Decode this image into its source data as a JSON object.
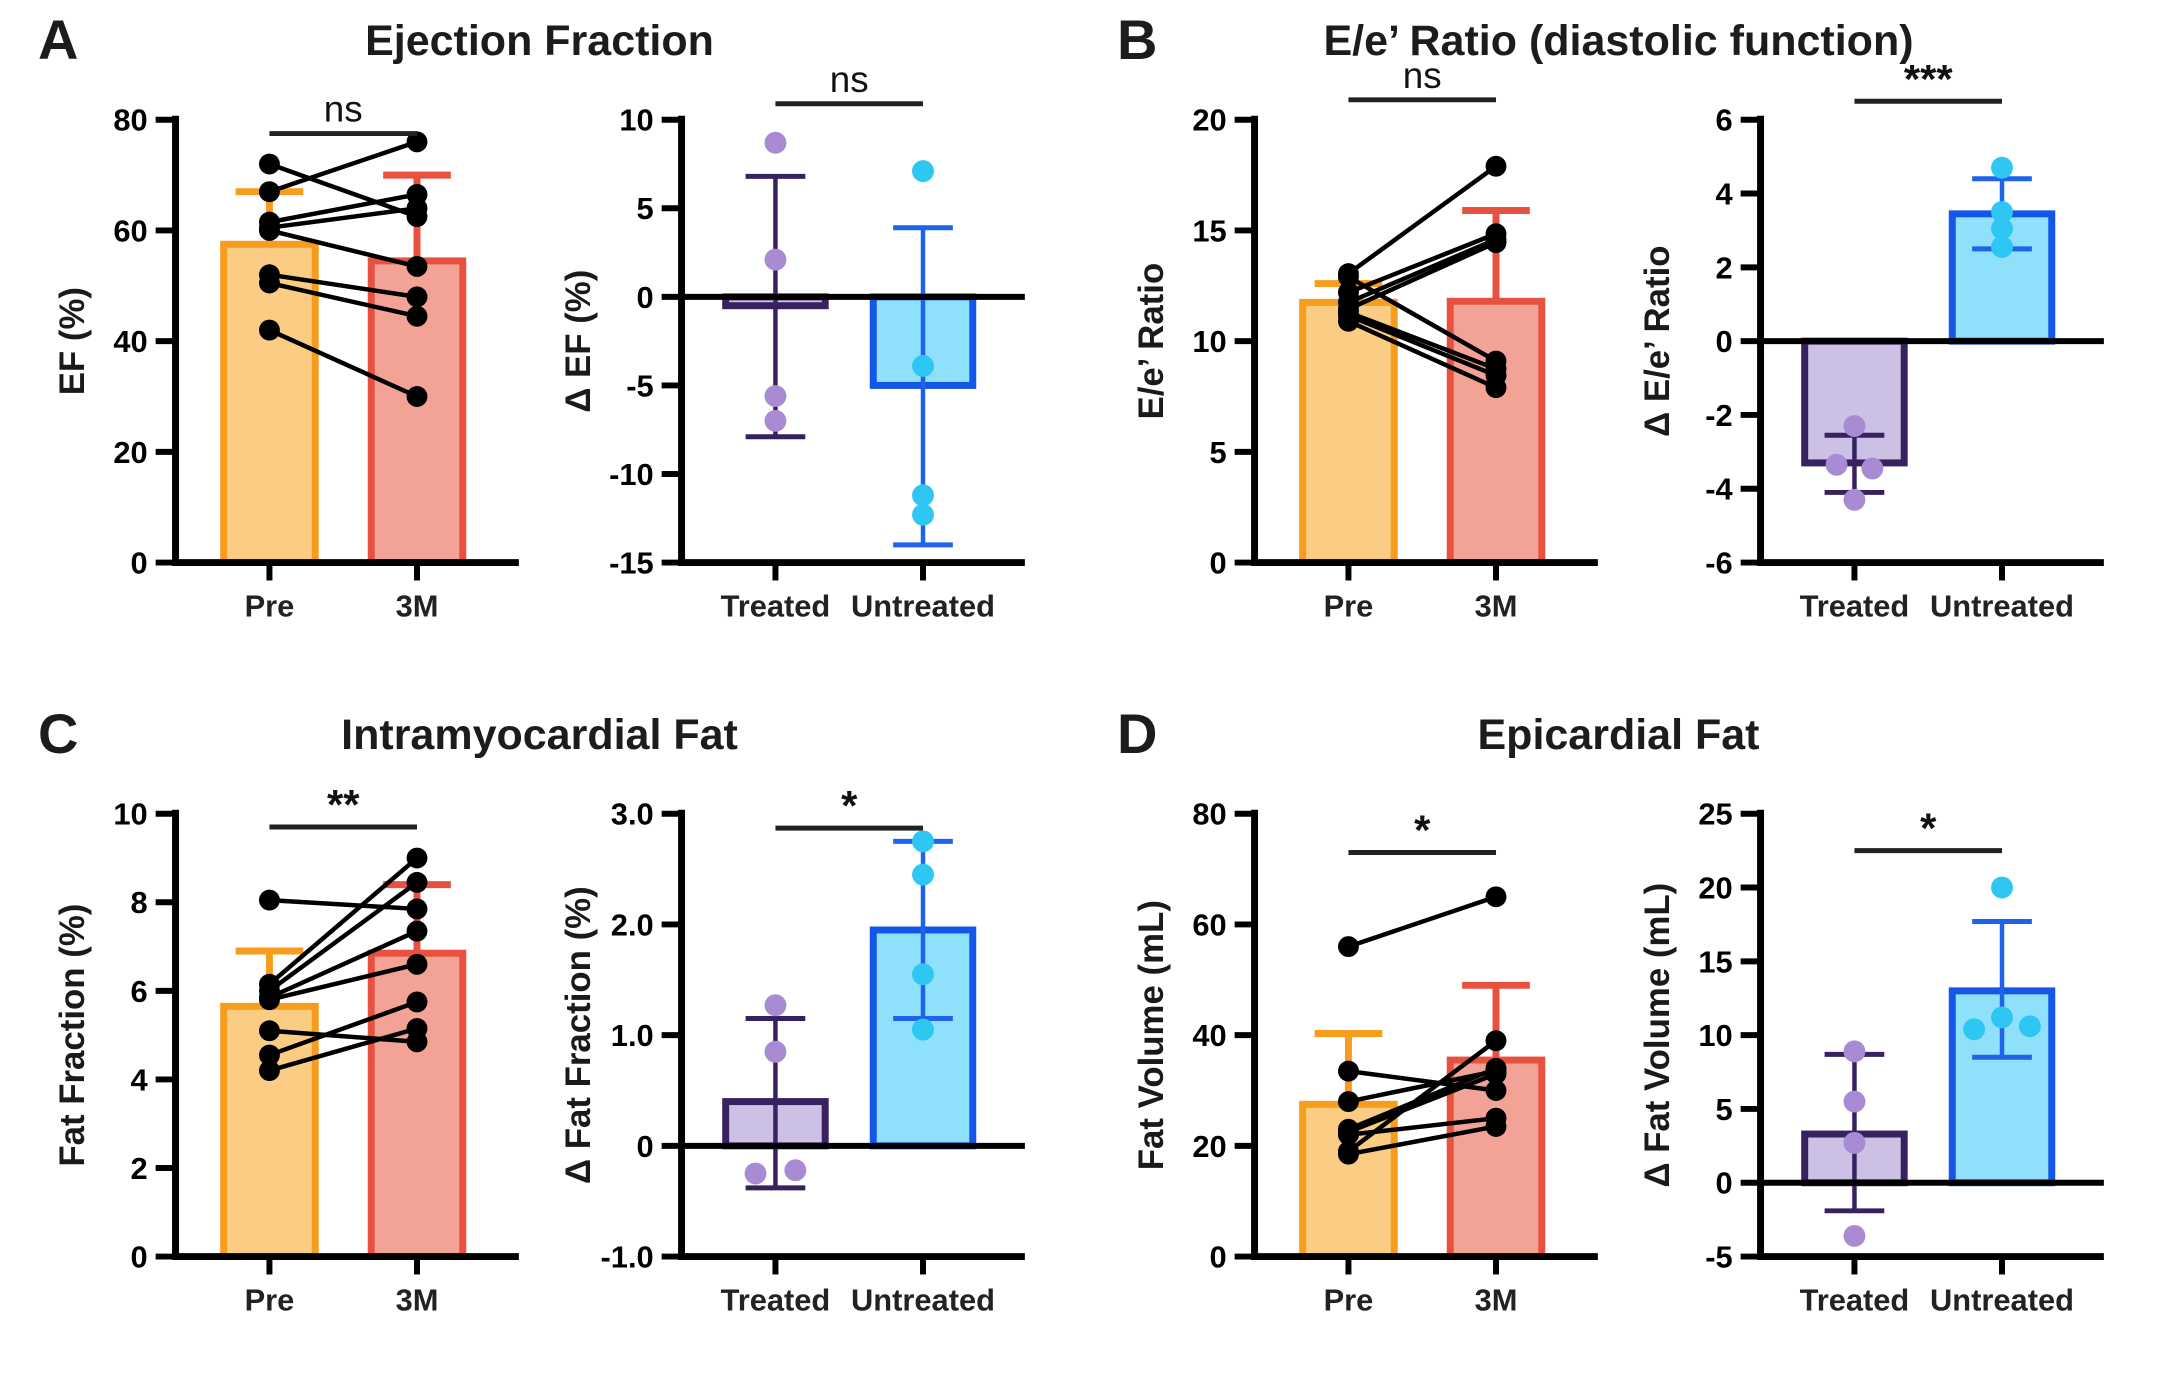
{
  "chart_data": {
    "type": "bar",
    "description": "Four-panel paired bar/scatter figure with delta bar charts",
    "palette": {
      "orange_fill": "#FBCD84",
      "orange_stroke": "#F79C1C",
      "red_fill": "#F2A396",
      "red_stroke": "#E85140",
      "purple_fill": "#CCC0E4",
      "purple_stroke": "#37215E",
      "purple_point": "#A98BD3",
      "blue_fill": "#8EE0FB",
      "blue_stroke": "#1356E8",
      "blue_err": "#1E63EA",
      "blue_point": "#2EC6F3",
      "axis": "#000000",
      "sig_line": "#222222"
    },
    "panels": [
      {
        "letter": "A",
        "title": "Ejection Fraction",
        "paired": {
          "type": "paired-bar-scatter",
          "ylabel": "EF (%)",
          "ylim": [
            0,
            80
          ],
          "yticks": [
            80,
            60,
            40,
            20,
            0
          ],
          "sig": "ns",
          "sig_y": 77.5,
          "categories": [
            "Pre",
            "3M"
          ],
          "bars": [
            {
              "category": "Pre",
              "mean": 57.5,
              "err_top": 67,
              "fill": "orange_fill",
              "stroke": "orange_stroke"
            },
            {
              "category": "3M",
              "mean": 54.5,
              "err_top": 70,
              "fill": "red_fill",
              "stroke": "red_stroke"
            }
          ],
          "pairs": [
            [
              72,
              62.5
            ],
            [
              67,
              76
            ],
            [
              61.5,
              66.5
            ],
            [
              60.5,
              64
            ],
            [
              60,
              53.5
            ],
            [
              52,
              48
            ],
            [
              50.5,
              44.5
            ],
            [
              42,
              30
            ]
          ]
        },
        "delta": {
          "type": "bar-scatter",
          "ylabel": "Δ EF (%)",
          "ylim": [
            -15,
            10
          ],
          "yticks": [
            10,
            5,
            0,
            -5,
            -10,
            -15
          ],
          "sig": "ns",
          "sig_y": 10.9,
          "categories": [
            "Treated",
            "Untreated"
          ],
          "bars": [
            {
              "category": "Treated",
              "mean": -0.5,
              "err": [
                -7.9,
                6.8
              ],
              "fill": "purple_fill",
              "stroke": "purple_stroke",
              "err_color": "purple_stroke",
              "point_color": "purple_point",
              "points": [
                [
                  8.7,
                  0
                ],
                [
                  2.1,
                  0
                ],
                [
                  -5.6,
                  0
                ],
                [
                  -7.0,
                  0
                ]
              ]
            },
            {
              "category": "Untreated",
              "mean": -5.0,
              "err": [
                -14,
                3.9
              ],
              "fill": "blue_fill",
              "stroke": "blue_stroke",
              "err_color": "blue_err",
              "point_color": "blue_point",
              "points": [
                [
                  7.1,
                  0
                ],
                [
                  -3.9,
                  0
                ],
                [
                  -11.2,
                  0
                ],
                [
                  -12.3,
                  0
                ]
              ]
            }
          ]
        }
      },
      {
        "letter": "B",
        "title": "E/e’ Ratio (diastolic function)",
        "paired": {
          "type": "paired-bar-scatter",
          "ylabel": "E/e’ Ratio",
          "ylim": [
            0,
            20
          ],
          "yticks": [
            20,
            15,
            10,
            5,
            0
          ],
          "sig": "ns",
          "sig_y": 20.9,
          "categories": [
            "Pre",
            "3M"
          ],
          "bars": [
            {
              "category": "Pre",
              "mean": 11.75,
              "err_top": 12.6,
              "fill": "orange_fill",
              "stroke": "orange_stroke"
            },
            {
              "category": "3M",
              "mean": 11.8,
              "err_top": 15.9,
              "fill": "red_fill",
              "stroke": "red_stroke"
            }
          ],
          "pairs": [
            [
              13.05,
              17.9
            ],
            [
              12.2,
              14.85
            ],
            [
              11.75,
              14.6
            ],
            [
              11.45,
              14.45
            ],
            [
              12.9,
              9.1
            ],
            [
              11.3,
              8.75
            ],
            [
              11.15,
              8.45
            ],
            [
              10.9,
              7.9
            ]
          ]
        },
        "delta": {
          "type": "bar-scatter",
          "ylabel": "Δ E/e’ Ratio",
          "ylim": [
            -6,
            6
          ],
          "yticks": [
            6,
            4,
            2,
            0,
            -2,
            -4,
            -6
          ],
          "sig": "***",
          "sig_y": 6.5,
          "categories": [
            "Treated",
            "Untreated"
          ],
          "bars": [
            {
              "category": "Treated",
              "mean": -3.3,
              "err": [
                -4.1,
                -2.55
              ],
              "fill": "purple_fill",
              "stroke": "purple_stroke",
              "err_color": "purple_stroke",
              "point_color": "purple_point",
              "points": [
                [
                  -2.3,
                  0
                ],
                [
                  -3.35,
                  -18
                ],
                [
                  -3.45,
                  18
                ],
                [
                  -4.3,
                  0
                ]
              ]
            },
            {
              "category": "Untreated",
              "mean": 3.45,
              "err": [
                2.5,
                4.4
              ],
              "fill": "blue_fill",
              "stroke": "blue_stroke",
              "err_color": "blue_err",
              "point_color": "blue_point",
              "points": [
                [
                  4.7,
                  0
                ],
                [
                  3.5,
                  0
                ],
                [
                  3.05,
                  0
                ],
                [
                  2.55,
                  0
                ]
              ]
            }
          ]
        }
      },
      {
        "letter": "C",
        "title": "Intramyocardial Fat",
        "paired": {
          "type": "paired-bar-scatter",
          "ylabel": "Fat Fraction (%)",
          "ylim": [
            0,
            10
          ],
          "yticks": [
            10,
            8,
            6,
            4,
            2,
            0
          ],
          "sig": "**",
          "sig_y": 9.7,
          "categories": [
            "Pre",
            "3M"
          ],
          "bars": [
            {
              "category": "Pre",
              "mean": 5.65,
              "err_top": 6.9,
              "fill": "orange_fill",
              "stroke": "orange_stroke"
            },
            {
              "category": "3M",
              "mean": 6.85,
              "err_top": 8.4,
              "fill": "red_fill",
              "stroke": "red_stroke"
            }
          ],
          "pairs": [
            [
              8.05,
              7.85
            ],
            [
              6.15,
              9.0
            ],
            [
              6.0,
              8.45
            ],
            [
              5.85,
              7.35
            ],
            [
              5.8,
              6.6
            ],
            [
              5.1,
              4.85
            ],
            [
              4.55,
              5.75
            ],
            [
              4.2,
              5.15
            ]
          ]
        },
        "delta": {
          "type": "bar-scatter",
          "ylabel": "Δ Fat Fraction (%)",
          "ylim": [
            -1,
            3
          ],
          "yticks": [
            {
              "v": 3,
              "label": "3.0"
            },
            {
              "v": 2,
              "label": "2.0"
            },
            {
              "v": 1,
              "label": "1.0"
            },
            {
              "v": 0,
              "label": "0"
            },
            {
              "v": -1,
              "label": "-1.0"
            }
          ],
          "sig": "*",
          "sig_y": 2.87,
          "categories": [
            "Treated",
            "Untreated"
          ],
          "bars": [
            {
              "category": "Treated",
              "mean": 0.4,
              "err": [
                -0.38,
                1.15
              ],
              "fill": "purple_fill",
              "stroke": "purple_stroke",
              "err_color": "purple_stroke",
              "point_color": "purple_point",
              "points": [
                [
                  1.27,
                  0
                ],
                [
                  0.85,
                  0
                ],
                [
                  -0.25,
                  -20
                ],
                [
                  -0.22,
                  20
                ]
              ]
            },
            {
              "category": "Untreated",
              "mean": 1.95,
              "err": [
                1.15,
                2.75
              ],
              "fill": "blue_fill",
              "stroke": "blue_stroke",
              "err_color": "blue_err",
              "point_color": "blue_point",
              "points": [
                [
                  2.75,
                  0
                ],
                [
                  2.45,
                  0
                ],
                [
                  1.55,
                  0
                ],
                [
                  1.05,
                  0
                ]
              ]
            }
          ]
        }
      },
      {
        "letter": "D",
        "title": "Epicardial Fat",
        "paired": {
          "type": "paired-bar-scatter",
          "ylabel": "Fat Volume (mL)",
          "ylim": [
            0,
            80
          ],
          "yticks": [
            80,
            60,
            40,
            20,
            0
          ],
          "sig": "*",
          "sig_y": 73,
          "categories": [
            "Pre",
            "3M"
          ],
          "bars": [
            {
              "category": "Pre",
              "mean": 27.5,
              "err_top": 40.3,
              "fill": "orange_fill",
              "stroke": "orange_stroke"
            },
            {
              "category": "3M",
              "mean": 35.5,
              "err_top": 49,
              "fill": "red_fill",
              "stroke": "red_stroke"
            }
          ],
          "pairs": [
            [
              56,
              65
            ],
            [
              33.5,
              30
            ],
            [
              28,
              33.5
            ],
            [
              23,
              34
            ],
            [
              22.5,
              33
            ],
            [
              22,
              25
            ],
            [
              19,
              39
            ],
            [
              18.5,
              23.5
            ]
          ]
        },
        "delta": {
          "type": "bar-scatter",
          "ylabel": "Δ Fat Volume (mL)",
          "ylim": [
            -5,
            25
          ],
          "yticks": [
            25,
            20,
            15,
            10,
            5,
            0,
            -5
          ],
          "sig": "*",
          "sig_y": 22.5,
          "categories": [
            "Treated",
            "Untreated"
          ],
          "bars": [
            {
              "category": "Treated",
              "mean": 3.3,
              "err": [
                -1.9,
                8.7
              ],
              "fill": "purple_fill",
              "stroke": "purple_stroke",
              "err_color": "purple_stroke",
              "point_color": "purple_point",
              "points": [
                [
                  8.9,
                  0
                ],
                [
                  5.5,
                  0
                ],
                [
                  2.7,
                  0
                ],
                [
                  -3.6,
                  0
                ]
              ]
            },
            {
              "category": "Untreated",
              "mean": 13,
              "err": [
                8.5,
                17.7
              ],
              "fill": "blue_fill",
              "stroke": "blue_stroke",
              "err_color": "blue_err",
              "point_color": "blue_point",
              "points": [
                [
                  20,
                  0
                ],
                [
                  11.2,
                  0
                ],
                [
                  10.4,
                  -28
                ],
                [
                  10.6,
                  28
                ]
              ]
            }
          ]
        }
      }
    ]
  }
}
